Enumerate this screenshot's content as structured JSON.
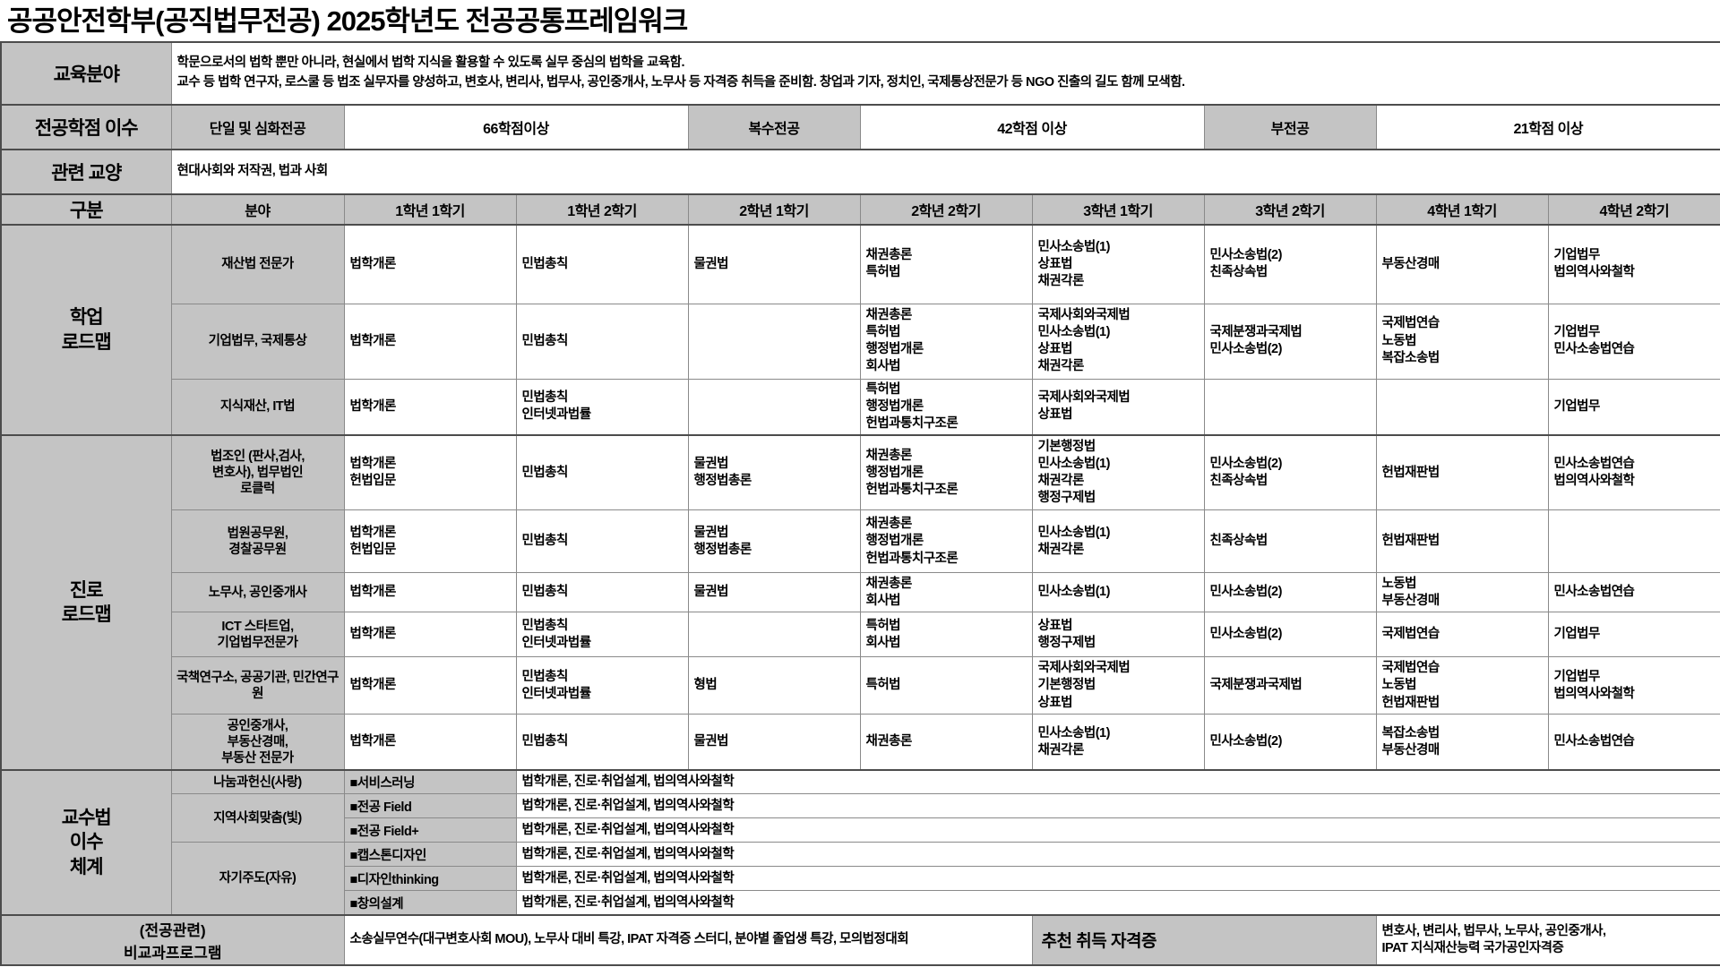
{
  "title": "공공안전학부(공직법무전공) 2025학년도 전공공통프레임워크",
  "colors": {
    "header_gray": "#c4c4c4",
    "border": "#8a8a8a",
    "section_border": "#4c4c4c"
  },
  "info": {
    "education": {
      "label": "교육분야",
      "desc": "학문으로서의 법학 뿐만 아니라, 현실에서 법학 지식을 활용할 수 있도록 실무 중심의 법학을 교육함.\n교수 등 법학 연구자, 로스쿨 등 법조 실무자를 양성하고, 변호사, 변리사, 법무사, 공인중개사, 노무사 등 자격증 취득을 준비함. 창업과 기자, 정치인, 국제통상전문가 등 NGO 진출의 길도 함께 모색함."
    },
    "credits": {
      "label": "전공학점 이수",
      "single_label": "단일 및 심화전공",
      "single_value": "66학점이상",
      "double_label": "복수전공",
      "double_value": "42학점 이상",
      "minor_label": "부전공",
      "minor_value": "21학점 이상"
    },
    "liberal": {
      "label": "관련 교양",
      "value": "현대사회와 저작권, 법과 사회"
    }
  },
  "header": {
    "gubun": "구분",
    "bunya": "분야",
    "semesters": [
      "1학년 1학기",
      "1학년 2학기",
      "2학년 1학기",
      "2학년 2학기",
      "3학년 1학기",
      "3학년 2학기",
      "4학년 1학기",
      "4학년 2학기"
    ]
  },
  "sections": [
    {
      "id": "study",
      "label": "학업\n로드맵",
      "rows": [
        {
          "field": "재산법 전문가",
          "cells": [
            [
              "법학개론"
            ],
            [
              "민법총칙"
            ],
            [
              "물권법"
            ],
            [
              "채권총론",
              "특허법"
            ],
            [
              "민사소송법(1)",
              "상표법",
              "채권각론"
            ],
            [
              "민사소송법(2)",
              "친족상속법"
            ],
            [
              "부동산경매"
            ],
            [
              "기업법무",
              "법의역사와철학"
            ]
          ]
        },
        {
          "field": "기업법무, 국제통상",
          "cells": [
            [
              "법학개론"
            ],
            [
              "민법총칙"
            ],
            [],
            [
              "채권총론",
              "특허법",
              "행정법개론",
              "회사법"
            ],
            [
              "국제사회와국제법",
              "민사소송법(1)",
              "상표법",
              "채권각론"
            ],
            [
              "국제분쟁과국제법",
              "민사소송법(2)"
            ],
            [
              "국제법연습",
              "노동법",
              "복잡소송법"
            ],
            [
              "기업법무",
              "민사소송법연습"
            ]
          ]
        },
        {
          "field": "지식재산, IT법",
          "cells": [
            [
              "법학개론"
            ],
            [
              "민법총칙",
              "인터넷과법률"
            ],
            [],
            [
              "특허법",
              "행정법개론",
              "헌법과통치구조론"
            ],
            [
              "국제사회와국제법",
              "상표법"
            ],
            [],
            [],
            [
              "기업법무"
            ]
          ]
        }
      ]
    },
    {
      "id": "career",
      "label": "진로\n로드맵",
      "rows": [
        {
          "field": "법조인 (판사,검사,\n변호사), 법무법인\n로클럭",
          "cells": [
            [
              "법학개론",
              "헌법입문"
            ],
            [
              "민법총칙"
            ],
            [
              "물권법",
              "행정법총론"
            ],
            [
              "채권총론",
              "행정법개론",
              "헌법과통치구조론"
            ],
            [
              "기본행정법",
              "민사소송법(1)",
              "채권각론",
              "행정구제법"
            ],
            [
              "민사소송법(2)",
              "친족상속법"
            ],
            [
              "헌법재판법"
            ],
            [
              "민사소송법연습",
              "법의역사와철학"
            ]
          ]
        },
        {
          "field": "법원공무원,\n경찰공무원",
          "cells": [
            [
              "법학개론",
              "헌법입문"
            ],
            [
              "민법총칙"
            ],
            [
              "물권법",
              "행정법총론"
            ],
            [
              "채권총론",
              "행정법개론",
              "헌법과통치구조론"
            ],
            [
              "민사소송법(1)",
              "채권각론"
            ],
            [
              "친족상속법"
            ],
            [
              "헌법재판법"
            ],
            []
          ]
        },
        {
          "field": "노무사, 공인중개사",
          "cells": [
            [
              "법학개론"
            ],
            [
              "민법총칙"
            ],
            [
              "물권법"
            ],
            [
              "채권총론",
              "회사법"
            ],
            [
              "민사소송법(1)"
            ],
            [
              "민사소송법(2)"
            ],
            [
              "노동법",
              "부동산경매"
            ],
            [
              "민사소송법연습"
            ]
          ]
        },
        {
          "field": "ICT 스타트업,\n기업법무전문가",
          "cells": [
            [
              "법학개론"
            ],
            [
              "민법총칙",
              "인터넷과법률"
            ],
            [],
            [
              "특허법",
              "회사법"
            ],
            [
              "상표법",
              "행정구제법"
            ],
            [
              "민사소송법(2)"
            ],
            [
              "국제법연습"
            ],
            [
              "기업법무"
            ]
          ]
        },
        {
          "field": "국책연구소, 공공기관, 민간연구원",
          "cells": [
            [
              "법학개론"
            ],
            [
              "민법총칙",
              "인터넷과법률"
            ],
            [
              "형법"
            ],
            [
              "특허법"
            ],
            [
              "국제사회와국제법",
              "기본행정법",
              "상표법"
            ],
            [
              "국제분쟁과국제법"
            ],
            [
              "국제법연습",
              "노동법",
              "헌법재판법"
            ],
            [
              "기업법무",
              "법의역사와철학"
            ]
          ]
        },
        {
          "field": "공인중개사,\n부동산경매,\n부동산 전문가",
          "cells": [
            [
              "법학개론"
            ],
            [
              "민법총칙"
            ],
            [
              "물권법"
            ],
            [
              "채권총론"
            ],
            [
              "민사소송법(1)",
              "채권각론"
            ],
            [
              "민사소송법(2)"
            ],
            [
              "복잡소송법",
              "부동산경매"
            ],
            [
              "민사소송법연습"
            ]
          ]
        }
      ]
    }
  ],
  "teaching": {
    "label": "교수법\n이수\n체계",
    "groups": [
      {
        "category": "나눔과헌신(사랑)",
        "programs": [
          {
            "name": "■서비스러닝",
            "courses": "법학개론,  진로·취업설계, 법의역사와철학"
          }
        ]
      },
      {
        "category": "지역사회맞춤(빛)",
        "programs": [
          {
            "name": "■전공 Field",
            "courses": "법학개론,  진로·취업설계, 법의역사와철학"
          },
          {
            "name": "■전공 Field+",
            "courses": "법학개론,  진로·취업설계, 법의역사와철학"
          }
        ]
      },
      {
        "category": "자기주도(자유)",
        "programs": [
          {
            "name": "■캡스톤디자인",
            "courses": "법학개론,  진로·취업설계, 법의역사와철학"
          },
          {
            "name": "■디자인thinking",
            "courses": "법학개론,  진로·취업설계, 법의역사와철학"
          },
          {
            "name": "■창의설계",
            "courses": "법학개론,  진로·취업설계, 법의역사와철학"
          }
        ]
      }
    ]
  },
  "extracurricular": {
    "label": "(전공관련)\n비교과프로그램",
    "programs": "소송실무연수(대구변호사회 MOU), 노무사 대비 특강, IPAT 자격증 스터디, 분야별 졸업생 특강, 모의법정대회",
    "cert_label": "추천 취득 자격증",
    "certs": "변호사, 변리사, 법무사, 노무사, 공인중개사,\nIPAT 지식재산능력 국가공인자격증"
  }
}
